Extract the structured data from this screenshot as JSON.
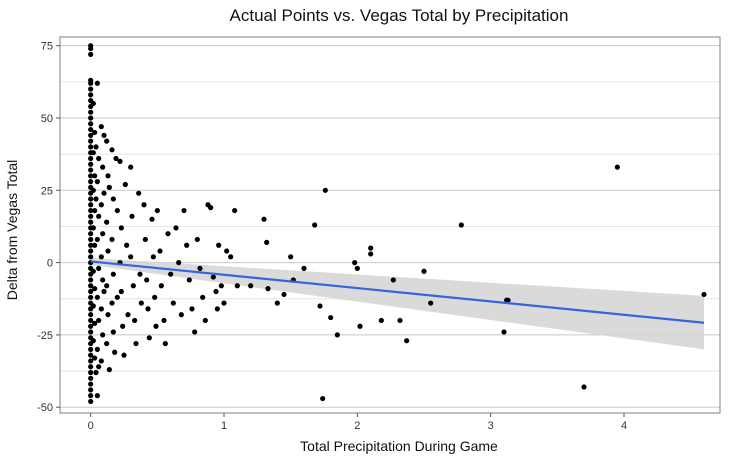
{
  "chart_data": {
    "type": "scatter",
    "title": "Actual Points vs. Vegas Total by Precipitation",
    "xlabel": "Total Precipitation During Game",
    "ylabel": "Delta from Vegas Total",
    "xlim": [
      -0.23,
      4.72
    ],
    "ylim": [
      -52,
      78
    ],
    "x_ticks": [
      0,
      1,
      2,
      3,
      4
    ],
    "y_ticks": [
      -50,
      -25,
      0,
      25,
      50,
      75
    ],
    "grid": true,
    "legend": "none",
    "colors": {
      "points": "#000000",
      "fit_line": "#3366dd",
      "confidence_band": "#d3d3d3",
      "frame": "#7f7f7f"
    },
    "trend_line": {
      "x": [
        0,
        4.6
      ],
      "y": [
        0.4,
        -20.8
      ],
      "band_lower": [
        -0.8,
        -30
      ],
      "band_upper": [
        1.6,
        -11.5
      ]
    },
    "points": [
      [
        0.0,
        75
      ],
      [
        0.0,
        74
      ],
      [
        0.0,
        72
      ],
      [
        0.0,
        63
      ],
      [
        0.0,
        62
      ],
      [
        0.0,
        60
      ],
      [
        0.0,
        58
      ],
      [
        0.0,
        56
      ],
      [
        0.0,
        54
      ],
      [
        0.0,
        52
      ],
      [
        0.0,
        50
      ],
      [
        0.0,
        48
      ],
      [
        0.0,
        46
      ],
      [
        0.0,
        44
      ],
      [
        0.0,
        42
      ],
      [
        0.0,
        40
      ],
      [
        0.0,
        38
      ],
      [
        0.0,
        36
      ],
      [
        0.0,
        34
      ],
      [
        0.0,
        32
      ],
      [
        0.0,
        30
      ],
      [
        0.0,
        28
      ],
      [
        0.0,
        26
      ],
      [
        0.0,
        24
      ],
      [
        0.0,
        22
      ],
      [
        0.0,
        20
      ],
      [
        0.0,
        18
      ],
      [
        0.0,
        16
      ],
      [
        0.0,
        14
      ],
      [
        0.0,
        12
      ],
      [
        0.0,
        10
      ],
      [
        0.0,
        8
      ],
      [
        0.0,
        6
      ],
      [
        0.0,
        4
      ],
      [
        0.0,
        2
      ],
      [
        0.0,
        0
      ],
      [
        0.0,
        -2
      ],
      [
        0.0,
        -4
      ],
      [
        0.0,
        -6
      ],
      [
        0.0,
        -8
      ],
      [
        0.0,
        -10
      ],
      [
        0.0,
        -12
      ],
      [
        0.0,
        -14
      ],
      [
        0.0,
        -16
      ],
      [
        0.0,
        -18
      ],
      [
        0.0,
        -20
      ],
      [
        0.0,
        -22
      ],
      [
        0.0,
        -24
      ],
      [
        0.0,
        -26
      ],
      [
        0.0,
        -28
      ],
      [
        0.0,
        -30
      ],
      [
        0.0,
        -32
      ],
      [
        0.0,
        -34
      ],
      [
        0.0,
        -36
      ],
      [
        0.0,
        -38
      ],
      [
        0.0,
        -40
      ],
      [
        0.0,
        -42
      ],
      [
        0.0,
        -44
      ],
      [
        0.0,
        -46
      ],
      [
        0.0,
        -48
      ],
      [
        0.02,
        55
      ],
      [
        0.03,
        45
      ],
      [
        0.02,
        38
      ],
      [
        0.03,
        30
      ],
      [
        0.02,
        25
      ],
      [
        0.03,
        18
      ],
      [
        0.02,
        12
      ],
      [
        0.03,
        6
      ],
      [
        0.02,
        -3
      ],
      [
        0.03,
        -9
      ],
      [
        0.02,
        -15
      ],
      [
        0.03,
        -21
      ],
      [
        0.02,
        -27
      ],
      [
        0.03,
        -33
      ],
      [
        0.04,
        -38
      ],
      [
        0.04,
        40
      ],
      [
        0.04,
        22
      ],
      [
        0.05,
        62
      ],
      [
        0.06,
        36
      ],
      [
        0.05,
        28
      ],
      [
        0.06,
        16
      ],
      [
        0.05,
        8
      ],
      [
        0.06,
        -2
      ],
      [
        0.05,
        -12
      ],
      [
        0.06,
        -20
      ],
      [
        0.05,
        -30
      ],
      [
        0.06,
        -36
      ],
      [
        0.05,
        -46
      ],
      [
        0.08,
        47
      ],
      [
        0.09,
        33
      ],
      [
        0.08,
        20
      ],
      [
        0.09,
        10
      ],
      [
        0.08,
        2
      ],
      [
        0.09,
        -6
      ],
      [
        0.08,
        -16
      ],
      [
        0.09,
        -25
      ],
      [
        0.08,
        -34
      ],
      [
        0.1,
        44
      ],
      [
        0.1,
        24
      ],
      [
        0.1,
        -10
      ],
      [
        0.12,
        42
      ],
      [
        0.13,
        30
      ],
      [
        0.12,
        14
      ],
      [
        0.13,
        4
      ],
      [
        0.12,
        -8
      ],
      [
        0.13,
        -18
      ],
      [
        0.12,
        -28
      ],
      [
        0.14,
        -37
      ],
      [
        0.14,
        26
      ],
      [
        0.16,
        39
      ],
      [
        0.17,
        22
      ],
      [
        0.16,
        8
      ],
      [
        0.17,
        -4
      ],
      [
        0.16,
        -14
      ],
      [
        0.17,
        -24
      ],
      [
        0.18,
        -31
      ],
      [
        0.19,
        36
      ],
      [
        0.2,
        18
      ],
      [
        0.2,
        -12
      ],
      [
        0.22,
        35
      ],
      [
        0.23,
        12
      ],
      [
        0.22,
        0
      ],
      [
        0.23,
        -10
      ],
      [
        0.24,
        -22
      ],
      [
        0.25,
        -32
      ],
      [
        0.26,
        27
      ],
      [
        0.27,
        6
      ],
      [
        0.28,
        -18
      ],
      [
        0.3,
        33
      ],
      [
        0.31,
        16
      ],
      [
        0.3,
        2
      ],
      [
        0.32,
        -8
      ],
      [
        0.33,
        -20
      ],
      [
        0.34,
        -28
      ],
      [
        0.36,
        24
      ],
      [
        0.37,
        -4
      ],
      [
        0.38,
        -14
      ],
      [
        0.4,
        20
      ],
      [
        0.41,
        8
      ],
      [
        0.42,
        -6
      ],
      [
        0.43,
        -16
      ],
      [
        0.44,
        -26
      ],
      [
        0.46,
        15
      ],
      [
        0.47,
        2
      ],
      [
        0.48,
        -12
      ],
      [
        0.49,
        -22
      ],
      [
        0.5,
        18
      ],
      [
        0.52,
        4
      ],
      [
        0.53,
        -8
      ],
      [
        0.55,
        -20
      ],
      [
        0.56,
        -28
      ],
      [
        0.58,
        10
      ],
      [
        0.6,
        -4
      ],
      [
        0.62,
        -14
      ],
      [
        0.64,
        12
      ],
      [
        0.66,
        0
      ],
      [
        0.68,
        -18
      ],
      [
        0.7,
        18
      ],
      [
        0.72,
        6
      ],
      [
        0.74,
        -6
      ],
      [
        0.76,
        -16
      ],
      [
        0.78,
        -24
      ],
      [
        0.8,
        8
      ],
      [
        0.82,
        -2
      ],
      [
        0.84,
        -12
      ],
      [
        0.86,
        -20
      ],
      [
        0.88,
        20
      ],
      [
        0.9,
        19
      ],
      [
        0.92,
        -5
      ],
      [
        0.94,
        -10
      ],
      [
        0.95,
        -16
      ],
      [
        0.96,
        6
      ],
      [
        0.98,
        -8
      ],
      [
        1.0,
        -14
      ],
      [
        1.02,
        4
      ],
      [
        1.05,
        2
      ],
      [
        1.08,
        18
      ],
      [
        1.1,
        -8
      ],
      [
        1.2,
        -8
      ],
      [
        1.3,
        15
      ],
      [
        1.32,
        7
      ],
      [
        1.33,
        -9
      ],
      [
        1.4,
        -14
      ],
      [
        1.45,
        -11
      ],
      [
        1.5,
        2
      ],
      [
        1.52,
        -6
      ],
      [
        1.6,
        -2
      ],
      [
        1.68,
        13
      ],
      [
        1.72,
        -15
      ],
      [
        1.74,
        -47
      ],
      [
        1.76,
        25
      ],
      [
        1.8,
        -19
      ],
      [
        1.85,
        -25
      ],
      [
        1.98,
        0
      ],
      [
        2.0,
        -2
      ],
      [
        2.02,
        -22
      ],
      [
        2.1,
        5
      ],
      [
        2.1,
        3
      ],
      [
        2.18,
        -20
      ],
      [
        2.27,
        -6
      ],
      [
        2.32,
        -20
      ],
      [
        2.37,
        -27
      ],
      [
        2.5,
        -3
      ],
      [
        2.55,
        -14
      ],
      [
        2.78,
        13
      ],
      [
        3.1,
        -24
      ],
      [
        3.12,
        -13
      ],
      [
        3.13,
        -13
      ],
      [
        3.7,
        -43
      ],
      [
        3.95,
        33
      ],
      [
        4.6,
        -11
      ]
    ]
  }
}
